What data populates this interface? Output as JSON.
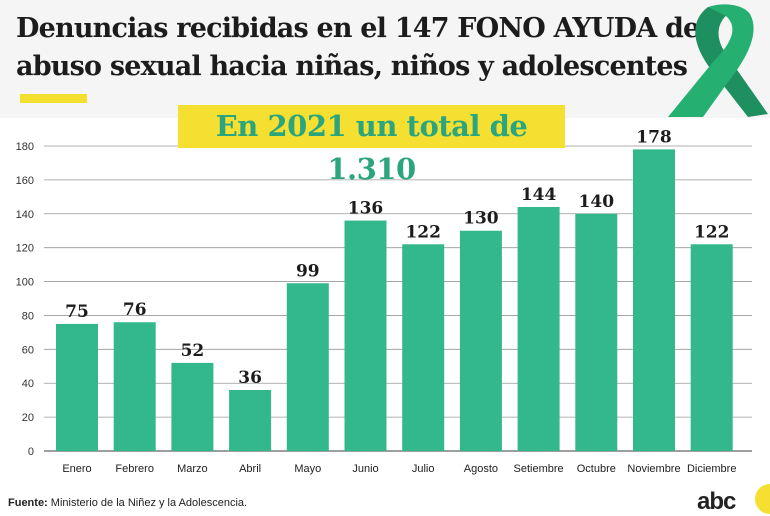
{
  "header": {
    "title_line1": "Denuncias recibidas en el 147 FONO AYUDA de",
    "title_line2": "abuso sexual hacia niñas, niños y adolescentes",
    "badge": "En 2021 un total de 1.310"
  },
  "footer": {
    "source_label": "Fuente:",
    "source_text": " Ministerio de la Niñez y la Adolescencia.",
    "logo": "abc"
  },
  "colors": {
    "bar": "#33b88d",
    "badge_bg": "#f5e031",
    "badge_text": "#2ba57e"
  },
  "chart_data": {
    "type": "bar",
    "categories": [
      "Enero",
      "Febrero",
      "Marzo",
      "Abril",
      "Mayo",
      "Junio",
      "Julio",
      "Agosto",
      "Setiembre",
      "Octubre",
      "Noviembre",
      "Diciembre"
    ],
    "values": [
      75,
      76,
      52,
      36,
      99,
      136,
      122,
      130,
      144,
      140,
      178,
      122
    ],
    "ylim": [
      0,
      180
    ],
    "yticks": [
      0,
      20,
      40,
      60,
      80,
      100,
      120,
      140,
      160,
      180
    ],
    "title": "Denuncias recibidas en el 147 FONO AYUDA de abuso sexual hacia niñas, niños y adolescentes",
    "xlabel": "",
    "ylabel": ""
  }
}
